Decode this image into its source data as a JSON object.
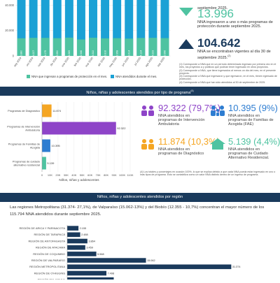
{
  "chart_top": {
    "type": "bar",
    "categories": [
      "sep 2024",
      "oct 2024",
      "nov 2024",
      "dic 2024",
      "ene 2025",
      "feb 2025",
      "mar 2025",
      "abr 2025",
      "may 2025",
      "jun 2025",
      "jul 2025",
      "ago 2025",
      "sep 2025"
    ],
    "series": [
      {
        "name": "NNA que ingresan a programas de protección en el mes",
        "values": [
          13880,
          14227,
          14175,
          13950,
          14369,
          12946,
          14322,
          13816,
          13958,
          13614,
          14124,
          14223,
          13996
        ],
        "color": "#4fc3a1"
      },
      {
        "name": "NNA atendidos durante el mes",
        "values": [
          103000,
          103500,
          103700,
          103600,
          103900,
          103800,
          104000,
          104100,
          104200,
          104300,
          104400,
          104500,
          104642
        ],
        "color": "#1ba1d5"
      }
    ],
    "bar_labels": [
      "13.880",
      "14.227",
      "14.175",
      "13.950",
      "14.369",
      "12.946",
      "14.322",
      "13.816",
      "13.958",
      "13.614",
      "14.124",
      "14.223",
      "13.996"
    ],
    "yticks": [
      "60.000",
      "40.000",
      "20.000",
      "0"
    ],
    "ylim": [
      0,
      110000
    ]
  },
  "stats_top": [
    {
      "prefix": "",
      "desc": "septiembre 2025."
    },
    {
      "value": "13.996",
      "desc": "NNA ingresaron a uno o más programas de protección durante septiembre 2025.",
      "color": "#4fc3a1"
    },
    {
      "value": "104.642",
      "desc": "NNA se encontraban vigentes al día 30 de septiembre 2025.",
      "sup": "(2)",
      "color": "#1a3a5c"
    }
  ],
  "notes_top": [
    "(1) Corresponde a NNA que en un período determinado ingresan por primera vez en el mes, los proyectos a y públicos que podrían tener ingresado en otros proyectos.",
    "(2) Corresponde a NNA, que tiene ingresados al menos un día del mes, en el presente proyecto.",
    "(3) Corresponde a NNA que ingresaron y que egresaron, en el mes, tienen egresado de protección.",
    "(4) Corresponde a NNA que han sido atendidos al 30 de septiembre de 2025."
  ],
  "section2": {
    "title": "Niños, niñas y adolescentes atendidos por tipo de programa",
    "sup": "(4)"
  },
  "chart_mid": {
    "type": "bar",
    "orientation": "horizontal",
    "categories": [
      "Programas de Diagnóstico",
      "Programas de Intervención Ambulatoria",
      "Programas de Familias de Acogida",
      "Programas de cuidado alternativo residencial"
    ],
    "values": [
      11874,
      92322,
      10395,
      5139
    ],
    "value_labels": [
      "11.874",
      "92.322",
      "10.395",
      "5.139"
    ],
    "colors": [
      "#f5a623",
      "#8e44c8",
      "#2e7dd1",
      "#4fc3a1"
    ],
    "xticks": [
      "0",
      "10K",
      "20K",
      "30K",
      "40K",
      "50K",
      "60K",
      "70K",
      "80K",
      "90K",
      "100K",
      "110K"
    ],
    "xlim": [
      0,
      110000
    ],
    "xlabel": "Niños, niñas y adolescentes"
  },
  "stats_mid": [
    {
      "value": "92.322 (79,7%)",
      "desc": "NNA atendidos en programas de Intervención Ambulatoria",
      "color": "#8e44c8",
      "icon": "people-icon"
    },
    {
      "value": "10.395 (9%)",
      "desc": "NNA atendidos en programas de Familias de Acogida (FAE)",
      "color": "#2e7dd1",
      "icon": "family-icon"
    },
    {
      "value": "11.874 (10,3%)",
      "desc": "NNA atendidos en programas de Diagnóstico",
      "color": "#f5a623",
      "icon": "people-icon"
    },
    {
      "value": "5.139 (4,4%)",
      "desc": "NNA atendidos en programas de Cuidado Alternativo Residencial.",
      "color": "#4fc3a1",
      "icon": "house-icon"
    }
  ],
  "note_mid": "(4) Los totales y porcentajes en ocasión 100%, lo que se explica debido a que cada NNA pueda estar ingresado en uno o más tipos de programa. Esto se contabiliza como un valor NNA distinto dentro de un ingreso de programa.",
  "section3": {
    "title": "Niños, niñas y adolescentes atendidos por región"
  },
  "region_intro": "Las regiones Metropolitana (31.374- 27,1%), de Valparaíso (15.062-13%) y del Biobío (12.355 - 10,7%) concentran el mayor número de los 115.794 NNA atendidos durante septiembre 2025.",
  "chart_bottom": {
    "type": "bar",
    "orientation": "horizontal",
    "categories": [
      "REGIÓN DE ARICA Y PARINACOTA",
      "REGIÓN DE TARAPACÁ",
      "REGIÓN DE ANTOFAGASTA",
      "REGIÓN DE ATACAMA",
      "REGIÓN DE COQUIMBO",
      "REGIÓN DE VALPARAÍSO",
      "REGIÓN METROPOLITANA",
      "REGIÓN DE O'HIGGINS",
      "REGIÓN DEL MAULE"
    ],
    "values": [
      2155,
      2488,
      3864,
      3459,
      5568,
      15062,
      31374,
      7498,
      8900
    ],
    "value_labels": [
      "2.155",
      "2.488",
      "3.864",
      "3.459",
      "5.568",
      "15.062",
      "31.374",
      "7.498",
      ""
    ],
    "color": "#1a3a5c",
    "xlim": [
      0,
      34000
    ]
  }
}
